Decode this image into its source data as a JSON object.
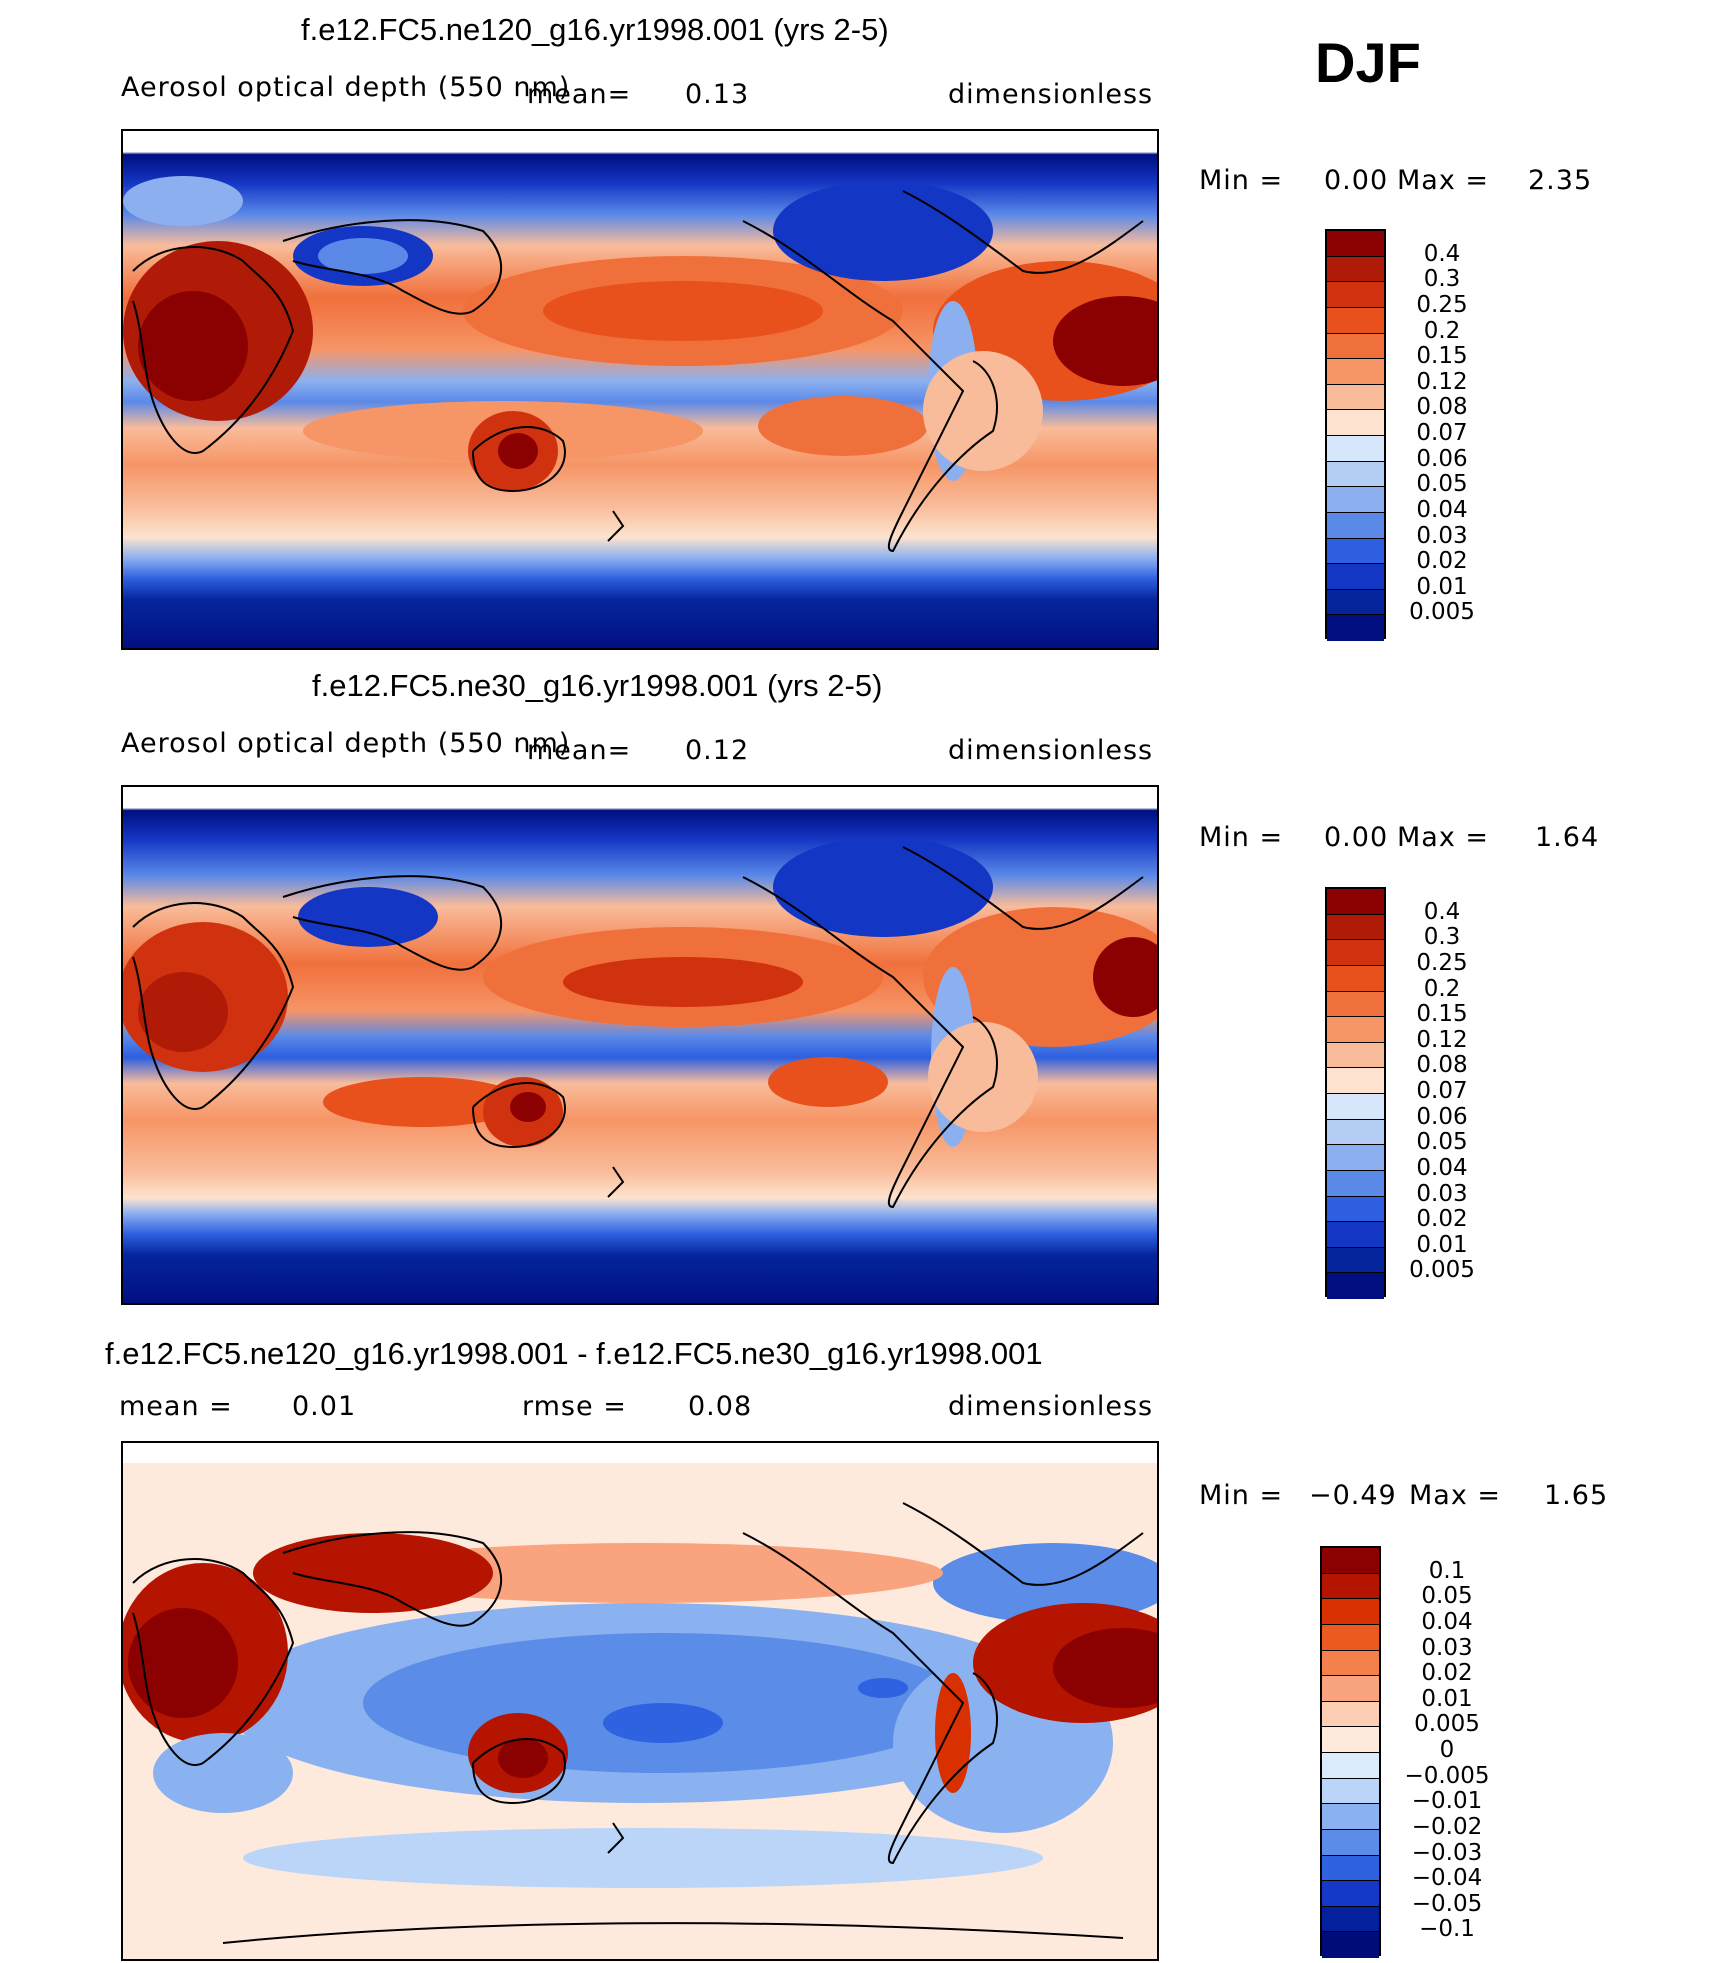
{
  "season": "DJF",
  "panels": [
    {
      "id": "top",
      "title": "f.e12.FC5.ne120_g16.yr1998.001 (yrs 2-5)",
      "variable": "Aerosol optical depth (550 nm)",
      "mean_label": "mean=",
      "mean_value": "0.13",
      "units": "dimensionless",
      "min_label": "Min =",
      "min_value": "0.00",
      "max_label": "Max =",
      "max_value": "2.35",
      "levels": [
        "0.4",
        "0.3",
        "0.25",
        "0.2",
        "0.15",
        "0.12",
        "0.08",
        "0.07",
        "0.06",
        "0.05",
        "0.04",
        "0.03",
        "0.02",
        "0.01",
        "0.005"
      ]
    },
    {
      "id": "middle",
      "title": "f.e12.FC5.ne30_g16.yr1998.001 (yrs 2-5)",
      "variable": "Aerosol optical depth (550 nm)",
      "mean_label": "mean=",
      "mean_value": "0.12",
      "units": "dimensionless",
      "min_label": "Min =",
      "min_value": "0.00",
      "max_label": "Max =",
      "max_value": "1.64",
      "levels": [
        "0.4",
        "0.3",
        "0.25",
        "0.2",
        "0.15",
        "0.12",
        "0.08",
        "0.07",
        "0.06",
        "0.05",
        "0.04",
        "0.03",
        "0.02",
        "0.01",
        "0.005"
      ]
    },
    {
      "id": "bottom",
      "title": "f.e12.FC5.ne120_g16.yr1998.001 - f.e12.FC5.ne30_g16.yr1998.001",
      "mean_label": "mean =",
      "mean_value": "0.01",
      "rmse_label": "rmse =",
      "rmse_value": "0.08",
      "units": "dimensionless",
      "min_label": "Min =",
      "min_value": "−0.49",
      "max_label": "Max =",
      "max_value": "1.65",
      "levels": [
        "0.1",
        "0.05",
        "0.04",
        "0.03",
        "0.02",
        "0.01",
        "0.005",
        "0",
        "−0.005",
        "−0.01",
        "−0.02",
        "−0.03",
        "−0.04",
        "−0.05",
        "−0.1"
      ]
    }
  ],
  "colors": {
    "abs_scale": [
      "#8b0000",
      "#b01b08",
      "#d03210",
      "#e8501c",
      "#f0703c",
      "#f69566",
      "#f9bc9a",
      "#fde3cf",
      "#d6e6fb",
      "#b4cdf5",
      "#8cb0ef",
      "#5a89e8",
      "#2d5fe0",
      "#1436c4",
      "#05259c",
      "#000e80"
    ],
    "diff_scale": [
      "#8b0000",
      "#b41400",
      "#d83000",
      "#ec5a22",
      "#f4804c",
      "#f9a47e",
      "#fccfb4",
      "#feeadc",
      "#dcebfc",
      "#bad5f8",
      "#8ab2f0",
      "#5a8ce8",
      "#2e62e0",
      "#1438c8",
      "#05209c",
      "#000c78"
    ]
  }
}
